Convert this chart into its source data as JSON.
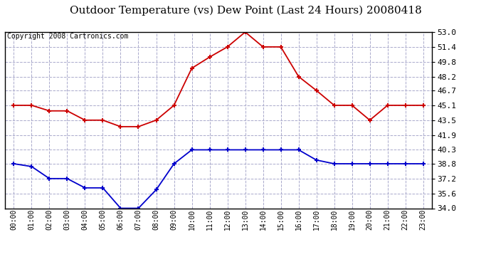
{
  "title": "Outdoor Temperature (vs) Dew Point (Last 24 Hours) 20080418",
  "copyright": "Copyright 2008 Cartronics.com",
  "hours": [
    "00:00",
    "01:00",
    "02:00",
    "03:00",
    "04:00",
    "05:00",
    "06:00",
    "07:00",
    "08:00",
    "09:00",
    "10:00",
    "11:00",
    "12:00",
    "13:00",
    "14:00",
    "15:00",
    "16:00",
    "17:00",
    "18:00",
    "19:00",
    "20:00",
    "21:00",
    "22:00",
    "23:00"
  ],
  "temp": [
    45.1,
    45.1,
    44.5,
    44.5,
    43.5,
    43.5,
    42.8,
    42.8,
    43.5,
    45.1,
    49.1,
    50.3,
    51.4,
    53.0,
    51.4,
    51.4,
    48.2,
    46.7,
    45.1,
    45.1,
    43.5,
    45.1,
    45.1,
    45.1
  ],
  "dew": [
    38.8,
    38.5,
    37.2,
    37.2,
    36.2,
    36.2,
    34.0,
    34.0,
    36.0,
    38.8,
    40.3,
    40.3,
    40.3,
    40.3,
    40.3,
    40.3,
    40.3,
    39.2,
    38.8,
    38.8,
    38.8,
    38.8,
    38.8,
    38.8
  ],
  "temp_color": "#cc0000",
  "dew_color": "#0000cc",
  "background_color": "#ffffff",
  "plot_background": "#ffffff",
  "grid_color": "#aaaacc",
  "ylim": [
    34.0,
    53.0
  ],
  "yticks": [
    34.0,
    35.6,
    37.2,
    38.8,
    40.3,
    41.9,
    43.5,
    45.1,
    46.7,
    48.2,
    49.8,
    51.4,
    53.0
  ],
  "title_fontsize": 11,
  "copyright_fontsize": 7,
  "marker": "+",
  "markersize": 5,
  "markeredgewidth": 1.5,
  "linewidth": 1.3
}
